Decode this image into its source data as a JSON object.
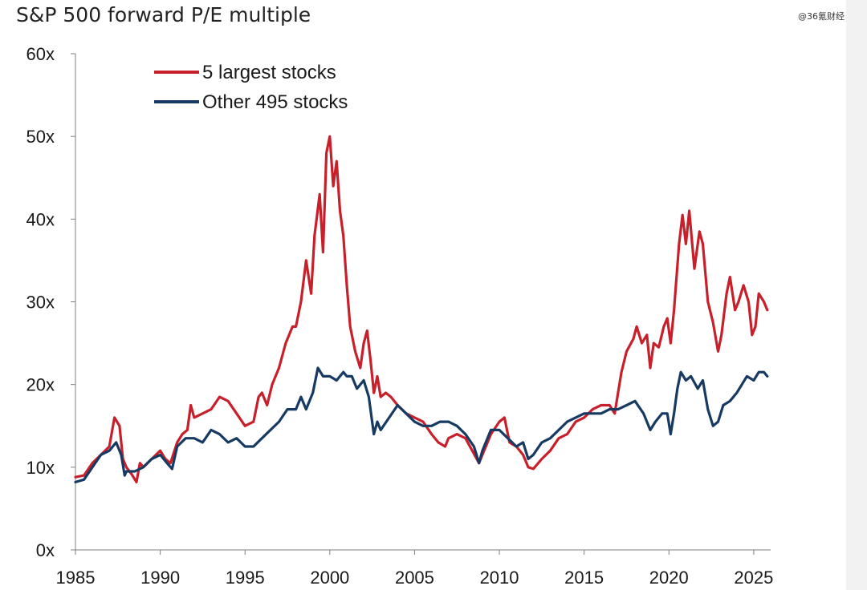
{
  "watermark": "@36氪财经",
  "chart_data": {
    "type": "line",
    "title": "S&P 500 forward P/E multiple",
    "xlabel": "",
    "ylabel": "",
    "xlim": [
      1985,
      2026
    ],
    "ylim": [
      0,
      60
    ],
    "x_ticks": [
      1985,
      1990,
      1995,
      2000,
      2005,
      2010,
      2015,
      2020,
      2025
    ],
    "y_ticks": [
      0,
      10,
      20,
      30,
      40,
      50,
      60
    ],
    "y_tick_labels": [
      "0x",
      "10x",
      "20x",
      "30x",
      "40x",
      "50x",
      "60x"
    ],
    "grid": false,
    "legend_position": "top-left",
    "series": [
      {
        "name": "5 largest stocks",
        "color": "#c8202b",
        "points": [
          [
            1985.0,
            8.8
          ],
          [
            1985.5,
            9.0
          ],
          [
            1986.0,
            10.5
          ],
          [
            1986.5,
            11.5
          ],
          [
            1987.0,
            12.5
          ],
          [
            1987.3,
            16.0
          ],
          [
            1987.6,
            15.0
          ],
          [
            1987.8,
            11.0
          ],
          [
            1988.0,
            10.0
          ],
          [
            1988.3,
            9.2
          ],
          [
            1988.6,
            8.2
          ],
          [
            1988.8,
            10.5
          ],
          [
            1989.0,
            10.0
          ],
          [
            1989.5,
            11.0
          ],
          [
            1990.0,
            12.0
          ],
          [
            1990.3,
            11.0
          ],
          [
            1990.6,
            10.5
          ],
          [
            1991.0,
            13.0
          ],
          [
            1991.3,
            14.0
          ],
          [
            1991.6,
            14.5
          ],
          [
            1991.8,
            17.5
          ],
          [
            1992.0,
            16.0
          ],
          [
            1992.5,
            16.5
          ],
          [
            1993.0,
            17.0
          ],
          [
            1993.5,
            18.5
          ],
          [
            1994.0,
            18.0
          ],
          [
            1994.5,
            16.5
          ],
          [
            1995.0,
            15.0
          ],
          [
            1995.5,
            15.5
          ],
          [
            1995.8,
            18.5
          ],
          [
            1996.0,
            19.0
          ],
          [
            1996.3,
            17.5
          ],
          [
            1996.6,
            20.0
          ],
          [
            1997.0,
            22.0
          ],
          [
            1997.4,
            25.0
          ],
          [
            1997.8,
            27.0
          ],
          [
            1998.0,
            27.0
          ],
          [
            1998.3,
            30.0
          ],
          [
            1998.6,
            35.0
          ],
          [
            1998.9,
            31.0
          ],
          [
            1999.1,
            38.0
          ],
          [
            1999.4,
            43.0
          ],
          [
            1999.6,
            36.0
          ],
          [
            1999.8,
            48.0
          ],
          [
            2000.0,
            50.0
          ],
          [
            2000.2,
            44.0
          ],
          [
            2000.4,
            47.0
          ],
          [
            2000.6,
            41.0
          ],
          [
            2000.8,
            38.0
          ],
          [
            2001.0,
            32.0
          ],
          [
            2001.2,
            27.0
          ],
          [
            2001.5,
            24.0
          ],
          [
            2001.8,
            22.0
          ],
          [
            2002.0,
            25.0
          ],
          [
            2002.2,
            26.5
          ],
          [
            2002.4,
            23.0
          ],
          [
            2002.6,
            19.0
          ],
          [
            2002.8,
            21.0
          ],
          [
            2003.0,
            18.5
          ],
          [
            2003.3,
            19.0
          ],
          [
            2003.6,
            18.5
          ],
          [
            2004.0,
            17.5
          ],
          [
            2004.5,
            16.5
          ],
          [
            2005.0,
            16.0
          ],
          [
            2005.5,
            15.5
          ],
          [
            2006.0,
            14.0
          ],
          [
            2006.4,
            13.0
          ],
          [
            2006.8,
            12.5
          ],
          [
            2007.0,
            13.5
          ],
          [
            2007.5,
            14.0
          ],
          [
            2008.0,
            13.5
          ],
          [
            2008.4,
            12.0
          ],
          [
            2008.8,
            10.5
          ],
          [
            2009.0,
            11.5
          ],
          [
            2009.5,
            14.0
          ],
          [
            2010.0,
            15.5
          ],
          [
            2010.3,
            16.0
          ],
          [
            2010.6,
            13.0
          ],
          [
            2011.0,
            12.5
          ],
          [
            2011.4,
            11.5
          ],
          [
            2011.7,
            10.0
          ],
          [
            2012.0,
            9.8
          ],
          [
            2012.5,
            11.0
          ],
          [
            2013.0,
            12.0
          ],
          [
            2013.5,
            13.5
          ],
          [
            2014.0,
            14.0
          ],
          [
            2014.5,
            15.5
          ],
          [
            2015.0,
            16.0
          ],
          [
            2015.5,
            17.0
          ],
          [
            2016.0,
            17.5
          ],
          [
            2016.5,
            17.5
          ],
          [
            2016.8,
            16.5
          ],
          [
            2017.2,
            21.5
          ],
          [
            2017.5,
            24.0
          ],
          [
            2017.9,
            25.5
          ],
          [
            2018.1,
            27.0
          ],
          [
            2018.4,
            25.0
          ],
          [
            2018.7,
            26.0
          ],
          [
            2018.9,
            22.0
          ],
          [
            2019.1,
            25.0
          ],
          [
            2019.4,
            24.5
          ],
          [
            2019.7,
            27.0
          ],
          [
            2019.9,
            28.0
          ],
          [
            2020.1,
            25.0
          ],
          [
            2020.3,
            29.0
          ],
          [
            2020.6,
            37.0
          ],
          [
            2020.8,
            40.5
          ],
          [
            2021.0,
            37.0
          ],
          [
            2021.2,
            41.0
          ],
          [
            2021.5,
            34.0
          ],
          [
            2021.8,
            38.5
          ],
          [
            2022.0,
            37.0
          ],
          [
            2022.3,
            30.0
          ],
          [
            2022.6,
            27.5
          ],
          [
            2022.9,
            24.0
          ],
          [
            2023.1,
            26.0
          ],
          [
            2023.4,
            31.0
          ],
          [
            2023.6,
            33.0
          ],
          [
            2023.9,
            29.0
          ],
          [
            2024.1,
            30.0
          ],
          [
            2024.4,
            32.0
          ],
          [
            2024.7,
            30.0
          ],
          [
            2024.9,
            26.0
          ],
          [
            2025.1,
            27.0
          ],
          [
            2025.3,
            31.0
          ],
          [
            2025.6,
            30.0
          ],
          [
            2025.8,
            29.0
          ]
        ]
      },
      {
        "name": "Other 495 stocks",
        "color": "#173a63",
        "points": [
          [
            1985.0,
            8.2
          ],
          [
            1985.5,
            8.5
          ],
          [
            1986.0,
            10.0
          ],
          [
            1986.5,
            11.5
          ],
          [
            1987.0,
            12.0
          ],
          [
            1987.4,
            13.0
          ],
          [
            1987.7,
            11.5
          ],
          [
            1987.9,
            9.0
          ],
          [
            1988.0,
            9.5
          ],
          [
            1988.5,
            9.5
          ],
          [
            1989.0,
            10.0
          ],
          [
            1989.5,
            11.0
          ],
          [
            1990.0,
            11.5
          ],
          [
            1990.4,
            10.5
          ],
          [
            1990.7,
            9.8
          ],
          [
            1991.0,
            12.5
          ],
          [
            1991.5,
            13.5
          ],
          [
            1992.0,
            13.5
          ],
          [
            1992.5,
            13.0
          ],
          [
            1993.0,
            14.5
          ],
          [
            1993.5,
            14.0
          ],
          [
            1994.0,
            13.0
          ],
          [
            1994.5,
            13.5
          ],
          [
            1995.0,
            12.5
          ],
          [
            1995.5,
            12.5
          ],
          [
            1996.0,
            13.5
          ],
          [
            1996.5,
            14.5
          ],
          [
            1997.0,
            15.5
          ],
          [
            1997.5,
            17.0
          ],
          [
            1998.0,
            17.0
          ],
          [
            1998.3,
            18.5
          ],
          [
            1998.6,
            17.0
          ],
          [
            1999.0,
            19.0
          ],
          [
            1999.3,
            22.0
          ],
          [
            1999.6,
            21.0
          ],
          [
            2000.0,
            21.0
          ],
          [
            2000.4,
            20.5
          ],
          [
            2000.8,
            21.5
          ],
          [
            2001.0,
            21.0
          ],
          [
            2001.3,
            21.0
          ],
          [
            2001.6,
            19.5
          ],
          [
            2002.0,
            20.5
          ],
          [
            2002.3,
            18.5
          ],
          [
            2002.6,
            14.0
          ],
          [
            2002.8,
            15.5
          ],
          [
            2003.0,
            14.5
          ],
          [
            2003.5,
            16.0
          ],
          [
            2004.0,
            17.5
          ],
          [
            2004.5,
            16.5
          ],
          [
            2005.0,
            15.5
          ],
          [
            2005.5,
            15.0
          ],
          [
            2006.0,
            15.0
          ],
          [
            2006.5,
            15.5
          ],
          [
            2007.0,
            15.5
          ],
          [
            2007.5,
            15.0
          ],
          [
            2008.0,
            14.0
          ],
          [
            2008.5,
            12.5
          ],
          [
            2008.8,
            10.5
          ],
          [
            2009.0,
            12.0
          ],
          [
            2009.5,
            14.5
          ],
          [
            2010.0,
            14.5
          ],
          [
            2010.5,
            13.5
          ],
          [
            2011.0,
            12.5
          ],
          [
            2011.4,
            13.0
          ],
          [
            2011.7,
            11.0
          ],
          [
            2012.0,
            11.5
          ],
          [
            2012.5,
            13.0
          ],
          [
            2013.0,
            13.5
          ],
          [
            2013.5,
            14.5
          ],
          [
            2014.0,
            15.5
          ],
          [
            2014.5,
            16.0
          ],
          [
            2015.0,
            16.5
          ],
          [
            2015.5,
            16.5
          ],
          [
            2016.0,
            16.5
          ],
          [
            2016.5,
            17.0
          ],
          [
            2017.0,
            17.0
          ],
          [
            2017.5,
            17.5
          ],
          [
            2018.0,
            18.0
          ],
          [
            2018.5,
            16.5
          ],
          [
            2018.9,
            14.5
          ],
          [
            2019.2,
            15.5
          ],
          [
            2019.6,
            16.5
          ],
          [
            2019.9,
            16.5
          ],
          [
            2020.1,
            14.0
          ],
          [
            2020.3,
            16.5
          ],
          [
            2020.5,
            19.5
          ],
          [
            2020.7,
            21.5
          ],
          [
            2021.0,
            20.5
          ],
          [
            2021.3,
            21.0
          ],
          [
            2021.7,
            19.5
          ],
          [
            2022.0,
            20.5
          ],
          [
            2022.3,
            17.0
          ],
          [
            2022.6,
            15.0
          ],
          [
            2022.9,
            15.5
          ],
          [
            2023.2,
            17.5
          ],
          [
            2023.6,
            18.0
          ],
          [
            2024.0,
            19.0
          ],
          [
            2024.3,
            20.0
          ],
          [
            2024.6,
            21.0
          ],
          [
            2025.0,
            20.5
          ],
          [
            2025.3,
            21.5
          ],
          [
            2025.6,
            21.5
          ],
          [
            2025.8,
            21.0
          ]
        ]
      }
    ]
  }
}
